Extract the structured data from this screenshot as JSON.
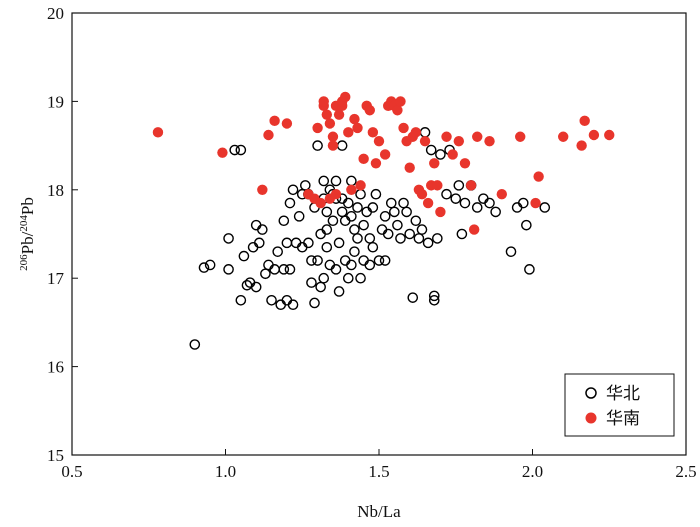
{
  "chart_data": {
    "type": "scatter",
    "xlabel": "Nb/La",
    "ylabel": {
      "prefix": "206",
      "mid": "Pb/",
      "prefix2": "204",
      "suffix": "Pb"
    },
    "xlim": [
      0.5,
      2.5
    ],
    "ylim": [
      15,
      20
    ],
    "xticks": [
      0.5,
      1.0,
      1.5,
      2.0,
      2.5
    ],
    "xtick_labels": [
      "0.5",
      "1.0",
      "1.5",
      "2.0",
      "2.5"
    ],
    "yticks": [
      15,
      16,
      17,
      18,
      19,
      20
    ],
    "ytick_labels": [
      "15",
      "16",
      "17",
      "18",
      "19",
      "20"
    ],
    "grid": false,
    "legend_position": "bottom-right",
    "series": [
      {
        "name": "华北",
        "marker": "open-circle",
        "color": "#000000",
        "points": [
          [
            0.9,
            16.25
          ],
          [
            0.93,
            17.12
          ],
          [
            0.95,
            17.15
          ],
          [
            1.01,
            17.1
          ],
          [
            1.01,
            17.45
          ],
          [
            1.03,
            18.45
          ],
          [
            1.05,
            18.45
          ],
          [
            1.05,
            16.75
          ],
          [
            1.06,
            17.25
          ],
          [
            1.07,
            16.92
          ],
          [
            1.08,
            16.95
          ],
          [
            1.09,
            17.35
          ],
          [
            1.1,
            16.9
          ],
          [
            1.1,
            17.6
          ],
          [
            1.11,
            17.4
          ],
          [
            1.12,
            17.55
          ],
          [
            1.13,
            17.05
          ],
          [
            1.14,
            17.15
          ],
          [
            1.15,
            16.75
          ],
          [
            1.16,
            17.1
          ],
          [
            1.17,
            17.3
          ],
          [
            1.18,
            16.7
          ],
          [
            1.19,
            17.65
          ],
          [
            1.2,
            16.75
          ],
          [
            1.2,
            17.4
          ],
          [
            1.21,
            17.1
          ],
          [
            1.21,
            17.85
          ],
          [
            1.22,
            18.0
          ],
          [
            1.22,
            16.7
          ],
          [
            1.23,
            17.4
          ],
          [
            1.24,
            17.7
          ],
          [
            1.25,
            17.35
          ],
          [
            1.25,
            17.95
          ],
          [
            1.26,
            18.05
          ],
          [
            1.27,
            17.4
          ],
          [
            1.28,
            17.2
          ],
          [
            1.28,
            16.95
          ],
          [
            1.29,
            16.72
          ],
          [
            1.29,
            17.8
          ],
          [
            1.3,
            18.5
          ],
          [
            1.3,
            17.2
          ],
          [
            1.31,
            16.9
          ],
          [
            1.31,
            17.5
          ],
          [
            1.32,
            17.0
          ],
          [
            1.32,
            17.9
          ],
          [
            1.32,
            18.1
          ],
          [
            1.33,
            17.35
          ],
          [
            1.33,
            17.75
          ],
          [
            1.34,
            17.15
          ],
          [
            1.34,
            18.0
          ],
          [
            1.35,
            17.65
          ],
          [
            1.35,
            17.95
          ],
          [
            1.36,
            18.1
          ],
          [
            1.36,
            17.1
          ],
          [
            1.37,
            16.85
          ],
          [
            1.37,
            17.4
          ],
          [
            1.38,
            17.75
          ],
          [
            1.38,
            17.9
          ],
          [
            1.38,
            18.5
          ],
          [
            1.39,
            17.65
          ],
          [
            1.39,
            17.2
          ],
          [
            1.4,
            17.0
          ],
          [
            1.4,
            17.85
          ],
          [
            1.41,
            18.1
          ],
          [
            1.41,
            17.15
          ],
          [
            1.42,
            17.3
          ],
          [
            1.42,
            17.55
          ],
          [
            1.43,
            17.45
          ],
          [
            1.43,
            17.8
          ],
          [
            1.44,
            17.0
          ],
          [
            1.44,
            17.95
          ],
          [
            1.45,
            17.2
          ],
          [
            1.45,
            17.6
          ],
          [
            1.46,
            17.75
          ],
          [
            1.47,
            17.45
          ],
          [
            1.47,
            17.15
          ],
          [
            1.48,
            17.35
          ],
          [
            1.48,
            17.8
          ],
          [
            1.49,
            17.95
          ],
          [
            1.5,
            17.2
          ],
          [
            1.51,
            17.55
          ],
          [
            1.52,
            17.7
          ],
          [
            1.53,
            17.5
          ],
          [
            1.54,
            17.85
          ],
          [
            1.55,
            17.75
          ],
          [
            1.56,
            17.6
          ],
          [
            1.57,
            17.45
          ],
          [
            1.58,
            17.85
          ],
          [
            1.59,
            17.75
          ],
          [
            1.6,
            17.5
          ],
          [
            1.61,
            16.78
          ],
          [
            1.62,
            17.65
          ],
          [
            1.63,
            17.45
          ],
          [
            1.64,
            17.55
          ],
          [
            1.65,
            18.65
          ],
          [
            1.66,
            17.4
          ],
          [
            1.67,
            18.45
          ],
          [
            1.68,
            16.8
          ],
          [
            1.68,
            16.75
          ],
          [
            1.69,
            17.45
          ],
          [
            1.7,
            18.4
          ],
          [
            1.72,
            17.95
          ],
          [
            1.73,
            18.45
          ],
          [
            1.75,
            17.9
          ],
          [
            1.76,
            18.05
          ],
          [
            1.77,
            17.5
          ],
          [
            1.78,
            17.85
          ],
          [
            1.8,
            18.05
          ],
          [
            1.82,
            17.8
          ],
          [
            1.84,
            17.9
          ],
          [
            1.86,
            17.85
          ],
          [
            1.88,
            17.75
          ],
          [
            1.93,
            17.3
          ],
          [
            1.95,
            17.8
          ],
          [
            1.97,
            17.85
          ],
          [
            1.98,
            17.6
          ],
          [
            1.99,
            17.1
          ],
          [
            2.04,
            17.8
          ],
          [
            1.36,
            17.9
          ],
          [
            1.27,
            17.95
          ],
          [
            1.19,
            17.1
          ],
          [
            1.33,
            17.55
          ],
          [
            1.41,
            17.7
          ],
          [
            1.52,
            17.2
          ]
        ]
      },
      {
        "name": "华南",
        "marker": "filled-circle",
        "color": "#e8352c",
        "points": [
          [
            0.78,
            18.65
          ],
          [
            0.99,
            18.42
          ],
          [
            1.12,
            18.0
          ],
          [
            1.14,
            18.62
          ],
          [
            1.16,
            18.78
          ],
          [
            1.2,
            18.75
          ],
          [
            1.27,
            17.95
          ],
          [
            1.29,
            17.9
          ],
          [
            1.3,
            18.7
          ],
          [
            1.31,
            17.85
          ],
          [
            1.32,
            18.95
          ],
          [
            1.32,
            19.0
          ],
          [
            1.33,
            18.85
          ],
          [
            1.34,
            18.75
          ],
          [
            1.34,
            17.9
          ],
          [
            1.35,
            18.6
          ],
          [
            1.35,
            18.5
          ],
          [
            1.36,
            18.95
          ],
          [
            1.36,
            17.95
          ],
          [
            1.37,
            18.85
          ],
          [
            1.38,
            18.95
          ],
          [
            1.38,
            19.0
          ],
          [
            1.39,
            19.05
          ],
          [
            1.4,
            18.65
          ],
          [
            1.41,
            18.0
          ],
          [
            1.42,
            18.8
          ],
          [
            1.43,
            18.7
          ],
          [
            1.44,
            18.05
          ],
          [
            1.45,
            18.35
          ],
          [
            1.46,
            18.95
          ],
          [
            1.47,
            18.9
          ],
          [
            1.48,
            18.65
          ],
          [
            1.49,
            18.3
          ],
          [
            1.5,
            18.55
          ],
          [
            1.52,
            18.4
          ],
          [
            1.53,
            18.95
          ],
          [
            1.54,
            19.0
          ],
          [
            1.55,
            18.95
          ],
          [
            1.56,
            18.9
          ],
          [
            1.57,
            19.0
          ],
          [
            1.58,
            18.7
          ],
          [
            1.59,
            18.55
          ],
          [
            1.6,
            18.25
          ],
          [
            1.61,
            18.6
          ],
          [
            1.62,
            18.65
          ],
          [
            1.63,
            18.0
          ],
          [
            1.64,
            17.95
          ],
          [
            1.65,
            18.55
          ],
          [
            1.66,
            17.85
          ],
          [
            1.67,
            18.05
          ],
          [
            1.68,
            18.3
          ],
          [
            1.69,
            18.05
          ],
          [
            1.7,
            17.75
          ],
          [
            1.72,
            18.6
          ],
          [
            1.74,
            18.4
          ],
          [
            1.76,
            18.55
          ],
          [
            1.78,
            18.3
          ],
          [
            1.8,
            18.05
          ],
          [
            1.81,
            17.55
          ],
          [
            1.82,
            18.6
          ],
          [
            1.86,
            18.55
          ],
          [
            1.9,
            17.95
          ],
          [
            1.96,
            18.6
          ],
          [
            2.01,
            17.85
          ],
          [
            2.02,
            18.15
          ],
          [
            2.1,
            18.6
          ],
          [
            2.16,
            18.5
          ],
          [
            2.17,
            18.78
          ],
          [
            2.2,
            18.62
          ],
          [
            2.25,
            18.62
          ]
        ]
      }
    ]
  }
}
